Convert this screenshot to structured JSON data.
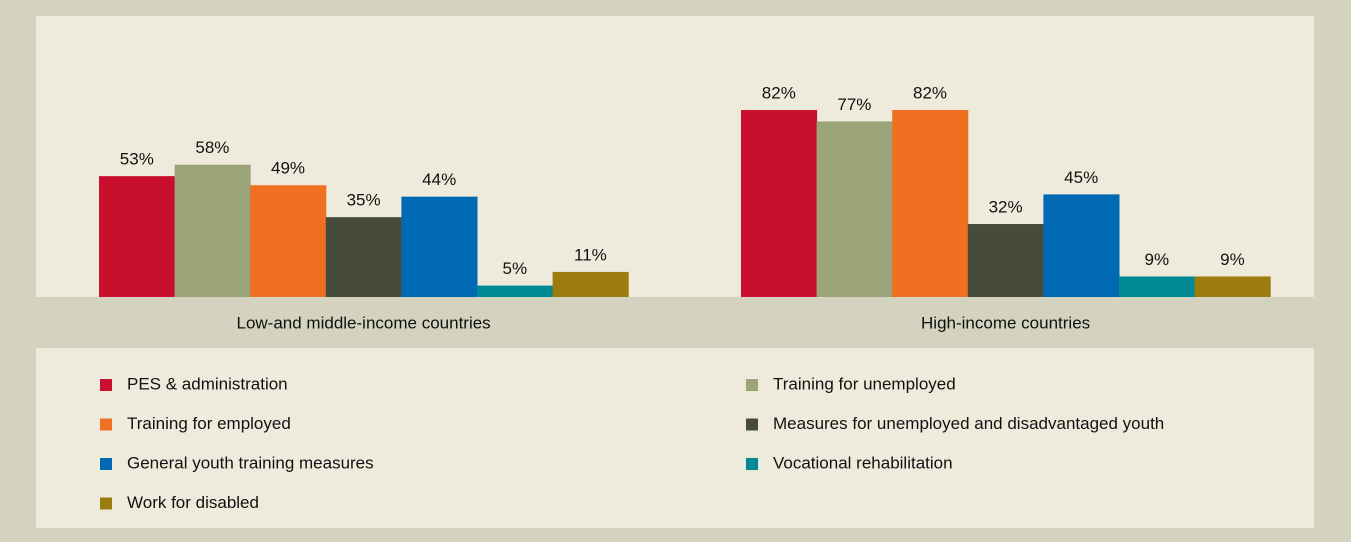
{
  "chart_data": {
    "type": "bar",
    "categories": [
      "Low-and middle-income countries",
      "High-income countries"
    ],
    "series": [
      {
        "name": "PES & administration",
        "color": "#c8102e",
        "values": [
          53,
          82
        ],
        "value_labels": [
          "53%",
          "82%"
        ]
      },
      {
        "name": "Training for unemployed",
        "color": "#9ca57a",
        "values": [
          58,
          77
        ],
        "value_labels": [
          "58%",
          "77%"
        ]
      },
      {
        "name": "Training for employed",
        "color": "#f07021",
        "values": [
          49,
          82
        ],
        "value_labels": [
          "49%",
          "82%"
        ]
      },
      {
        "name": "Measures for unemployed and disadvantaged youth",
        "color": "#464b3c",
        "values": [
          35,
          32
        ],
        "value_labels": [
          "35%",
          "32%"
        ]
      },
      {
        "name": "General youth training measures",
        "color": "#0069b4",
        "values": [
          44,
          45
        ],
        "value_labels": [
          "44%",
          "45%"
        ]
      },
      {
        "name": "Vocational rehabilitation",
        "color": "#008a94",
        "values": [
          5,
          9
        ],
        "value_labels": [
          "5%",
          "9%"
        ]
      },
      {
        "name": "Work for disabled",
        "color": "#9c7c0c",
        "values": [
          11,
          9
        ],
        "value_labels": [
          "11%",
          "9%"
        ]
      }
    ]
  }
}
